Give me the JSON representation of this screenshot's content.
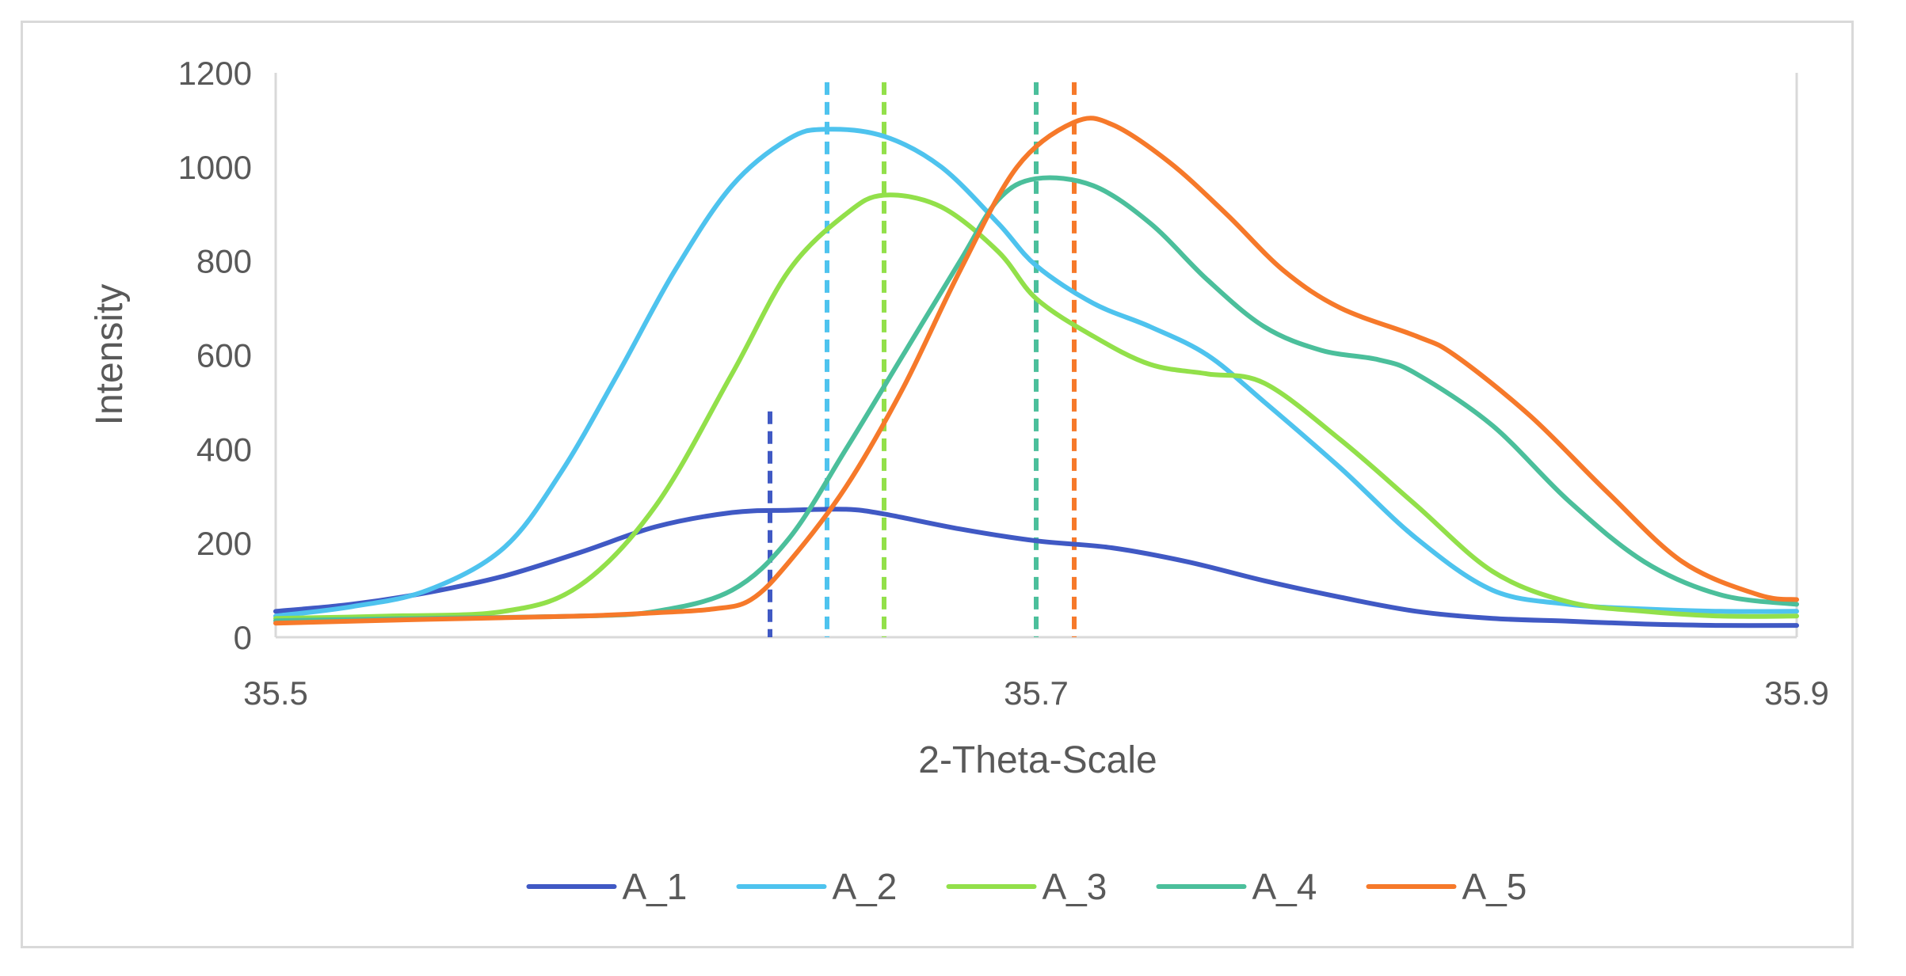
{
  "chart_data": {
    "type": "line",
    "title": "",
    "xlabel": "2-Theta-Scale",
    "ylabel": "Intensity",
    "xlim": [
      35.5,
      35.9
    ],
    "ylim": [
      0,
      1200
    ],
    "x_ticks": [
      "35.5",
      "35.7",
      "35.9"
    ],
    "x_tick_values": [
      35.5,
      35.7,
      35.9
    ],
    "y_ticks": [
      "0",
      "200",
      "400",
      "600",
      "800",
      "1000",
      "1200"
    ],
    "y_tick_values": [
      0,
      200,
      400,
      600,
      800,
      1000,
      1200
    ],
    "grid": false,
    "legend_position": "bottom",
    "series": [
      {
        "name": "A_1",
        "color": "#4059c4",
        "peak_x": 35.63,
        "peak_line_top": 480,
        "points": [
          [
            35.5,
            55
          ],
          [
            35.52,
            70
          ],
          [
            35.54,
            95
          ],
          [
            35.56,
            130
          ],
          [
            35.58,
            180
          ],
          [
            35.6,
            235
          ],
          [
            35.62,
            265
          ],
          [
            35.635,
            270
          ],
          [
            35.65,
            272
          ],
          [
            35.66,
            262
          ],
          [
            35.68,
            230
          ],
          [
            35.7,
            205
          ],
          [
            35.72,
            190
          ],
          [
            35.74,
            160
          ],
          [
            35.76,
            120
          ],
          [
            35.78,
            85
          ],
          [
            35.8,
            55
          ],
          [
            35.82,
            40
          ],
          [
            35.84,
            34
          ],
          [
            35.86,
            28
          ],
          [
            35.88,
            25
          ],
          [
            35.9,
            25
          ]
        ]
      },
      {
        "name": "A_2",
        "color": "#4ec3ee",
        "peak_x": 35.645,
        "peak_line_top": 1180,
        "points": [
          [
            35.5,
            45
          ],
          [
            35.52,
            65
          ],
          [
            35.54,
            100
          ],
          [
            35.56,
            190
          ],
          [
            35.575,
            350
          ],
          [
            35.59,
            560
          ],
          [
            35.605,
            780
          ],
          [
            35.62,
            960
          ],
          [
            35.635,
            1060
          ],
          [
            35.645,
            1080
          ],
          [
            35.66,
            1065
          ],
          [
            35.675,
            1000
          ],
          [
            35.69,
            880
          ],
          [
            35.7,
            790
          ],
          [
            35.715,
            710
          ],
          [
            35.73,
            660
          ],
          [
            35.745,
            600
          ],
          [
            35.76,
            500
          ],
          [
            35.78,
            360
          ],
          [
            35.8,
            210
          ],
          [
            35.82,
            100
          ],
          [
            35.84,
            70
          ],
          [
            35.86,
            60
          ],
          [
            35.88,
            55
          ],
          [
            35.9,
            55
          ]
        ]
      },
      {
        "name": "A_3",
        "color": "#92e04a",
        "peak_x": 35.66,
        "peak_line_top": 1180,
        "points": [
          [
            35.5,
            40
          ],
          [
            35.53,
            45
          ],
          [
            35.56,
            55
          ],
          [
            35.58,
            110
          ],
          [
            35.6,
            280
          ],
          [
            35.62,
            560
          ],
          [
            35.635,
            780
          ],
          [
            35.65,
            900
          ],
          [
            35.66,
            940
          ],
          [
            35.675,
            915
          ],
          [
            35.69,
            820
          ],
          [
            35.7,
            720
          ],
          [
            35.715,
            640
          ],
          [
            35.73,
            580
          ],
          [
            35.745,
            560
          ],
          [
            35.76,
            540
          ],
          [
            35.78,
            420
          ],
          [
            35.8,
            280
          ],
          [
            35.82,
            140
          ],
          [
            35.84,
            75
          ],
          [
            35.86,
            55
          ],
          [
            35.88,
            45
          ],
          [
            35.9,
            45
          ]
        ]
      },
      {
        "name": "A_4",
        "color": "#4bbf9b",
        "peak_x": 35.7,
        "peak_line_top": 1180,
        "points": [
          [
            35.5,
            35
          ],
          [
            35.54,
            40
          ],
          [
            35.58,
            45
          ],
          [
            35.6,
            55
          ],
          [
            35.62,
            100
          ],
          [
            35.635,
            210
          ],
          [
            35.65,
            400
          ],
          [
            35.665,
            600
          ],
          [
            35.68,
            800
          ],
          [
            35.69,
            930
          ],
          [
            35.7,
            975
          ],
          [
            35.715,
            960
          ],
          [
            35.73,
            880
          ],
          [
            35.745,
            760
          ],
          [
            35.76,
            660
          ],
          [
            35.775,
            610
          ],
          [
            35.79,
            590
          ],
          [
            35.8,
            560
          ],
          [
            35.82,
            450
          ],
          [
            35.84,
            290
          ],
          [
            35.86,
            160
          ],
          [
            35.88,
            90
          ],
          [
            35.9,
            70
          ]
        ]
      },
      {
        "name": "A_5",
        "color": "#f6792a",
        "peak_x": 35.71,
        "peak_line_top": 1180,
        "points": [
          [
            35.5,
            30
          ],
          [
            35.54,
            38
          ],
          [
            35.58,
            45
          ],
          [
            35.6,
            52
          ],
          [
            35.615,
            60
          ],
          [
            35.625,
            80
          ],
          [
            35.635,
            160
          ],
          [
            35.65,
            320
          ],
          [
            35.665,
            530
          ],
          [
            35.68,
            780
          ],
          [
            35.695,
            1000
          ],
          [
            35.71,
            1095
          ],
          [
            35.72,
            1090
          ],
          [
            35.735,
            1010
          ],
          [
            35.75,
            900
          ],
          [
            35.765,
            780
          ],
          [
            35.78,
            700
          ],
          [
            35.8,
            640
          ],
          [
            35.81,
            600
          ],
          [
            35.83,
            470
          ],
          [
            35.85,
            310
          ],
          [
            35.87,
            160
          ],
          [
            35.89,
            90
          ],
          [
            35.9,
            80
          ]
        ]
      }
    ]
  }
}
